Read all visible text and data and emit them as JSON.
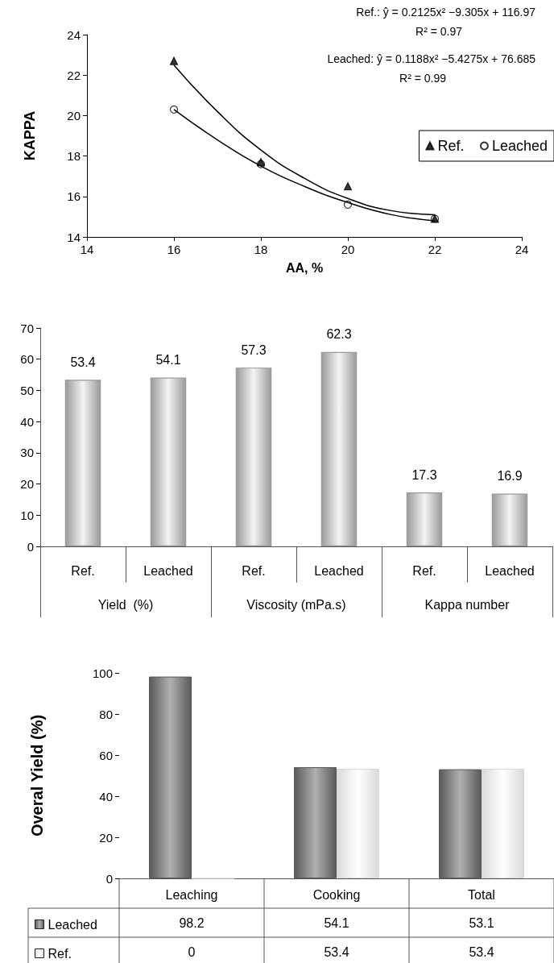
{
  "chart_data": [
    {
      "type": "scatter",
      "xlabel": "AA, %",
      "ylabel": "KAPPA",
      "xlim": [
        14,
        24
      ],
      "xticks": [
        14,
        16,
        18,
        20,
        22,
        24
      ],
      "ylim": [
        14,
        24
      ],
      "yticks": [
        14,
        16,
        18,
        20,
        22,
        24
      ],
      "grid": false,
      "legend": "right",
      "line_style": "solid",
      "annotations": [
        "Ref.: ŷ = 0.2125x² −9.305x + 116.97",
        "R² = 0.97",
        "Leached: ŷ = 0.1188x² −5.4275x + 76.685",
        "R² = 0.99"
      ],
      "series": [
        {
          "name": "Ref.",
          "color": "#000000",
          "marker": "triangle",
          "x": [
            16,
            18,
            20,
            22
          ],
          "values": [
            22.7,
            17.7,
            16.5,
            14.9
          ]
        },
        {
          "name": "Leached",
          "color": "#000000",
          "marker": "circle",
          "x": [
            16,
            18,
            20,
            22
          ],
          "values": [
            20.3,
            17.6,
            15.6,
            14.9
          ]
        },
        {
          "type": "line",
          "color": "#000000",
          "marker": "none",
          "x": [
            16,
            17,
            18,
            19,
            20,
            21,
            22
          ],
          "values": [
            22.5,
            20.2,
            18.3,
            16.9,
            15.9,
            15.3,
            15.1
          ]
        },
        {
          "type": "line",
          "color": "#000000",
          "marker": "none",
          "x": [
            16,
            17,
            18,
            19,
            20,
            21,
            22
          ],
          "values": [
            20.3,
            18.8,
            17.5,
            16.5,
            15.7,
            15.1,
            14.8
          ]
        }
      ]
    },
    {
      "type": "bar",
      "categories": [
        "Ref.",
        "Leached",
        "Ref.",
        "Leached",
        "Ref.",
        "Leached"
      ],
      "values": [
        53.4,
        54.1,
        57.3,
        62.3,
        17.3,
        16.9
      ],
      "color": "#9a9a9a",
      "data_labels": true,
      "ylim": [
        0,
        70
      ],
      "yticks": [
        0,
        10,
        20,
        30,
        40,
        50,
        60,
        70
      ],
      "grid": false,
      "annotations": [
        "Yield  (%)",
        "Viscosity (mPa.s)",
        "Kappa number"
      ]
    },
    {
      "type": "bar",
      "ylabel": "Overal Yield (%)",
      "categories": [
        "Leaching",
        "Cooking",
        "Total"
      ],
      "ylim": [
        0,
        100
      ],
      "yticks": [
        0,
        20,
        40,
        60,
        80,
        100
      ],
      "grid": false,
      "legend": "bottom left",
      "data_labels": true,
      "series": [
        {
          "name": "Leached",
          "color": "#5a5a5a",
          "values": [
            98.2,
            54.1,
            53.1
          ]
        },
        {
          "name": "Ref.",
          "color": "#d9d9d9",
          "values": [
            0,
            53.4,
            53.4
          ]
        }
      ]
    }
  ]
}
